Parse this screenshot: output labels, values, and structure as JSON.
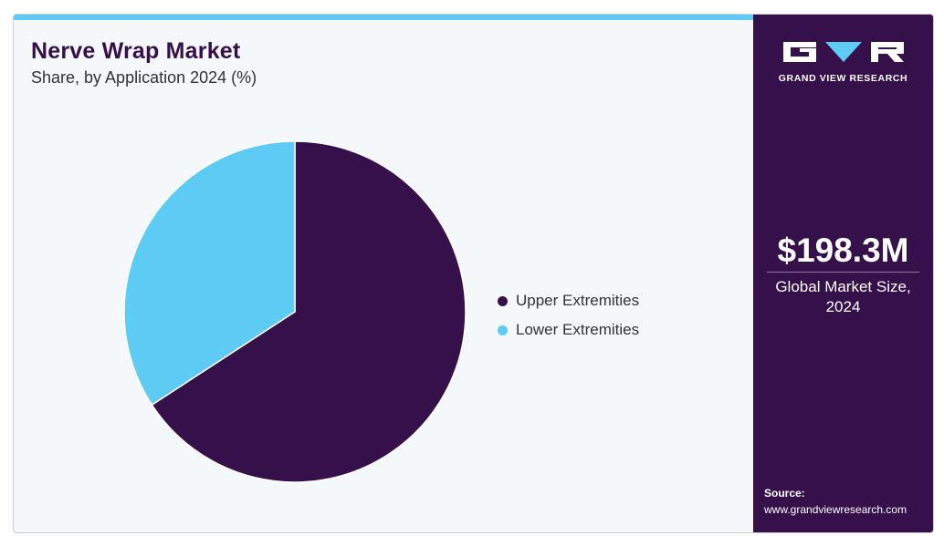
{
  "header": {
    "title": "Nerve Wrap Market",
    "subtitle": "Share, by Application 2024 (%)"
  },
  "chart_data": {
    "type": "pie",
    "title": "Nerve Wrap Market",
    "subtitle": "Share, by Application 2024 (%)",
    "categories": [
      "Upper Extremities",
      "Lower Extremities"
    ],
    "values": [
      65.8,
      34.2
    ],
    "colors": [
      "#36104a",
      "#5ecbf5"
    ],
    "start_angle_deg": 0,
    "direction": "clockwise",
    "legend_position": "right"
  },
  "sidebar": {
    "logo_text": "GRAND VIEW RESEARCH",
    "market_size": "$198.3M",
    "market_size_caption": "Global Market Size, 2024",
    "source_label": "Source:",
    "source_url": "www.grandviewresearch.com"
  }
}
